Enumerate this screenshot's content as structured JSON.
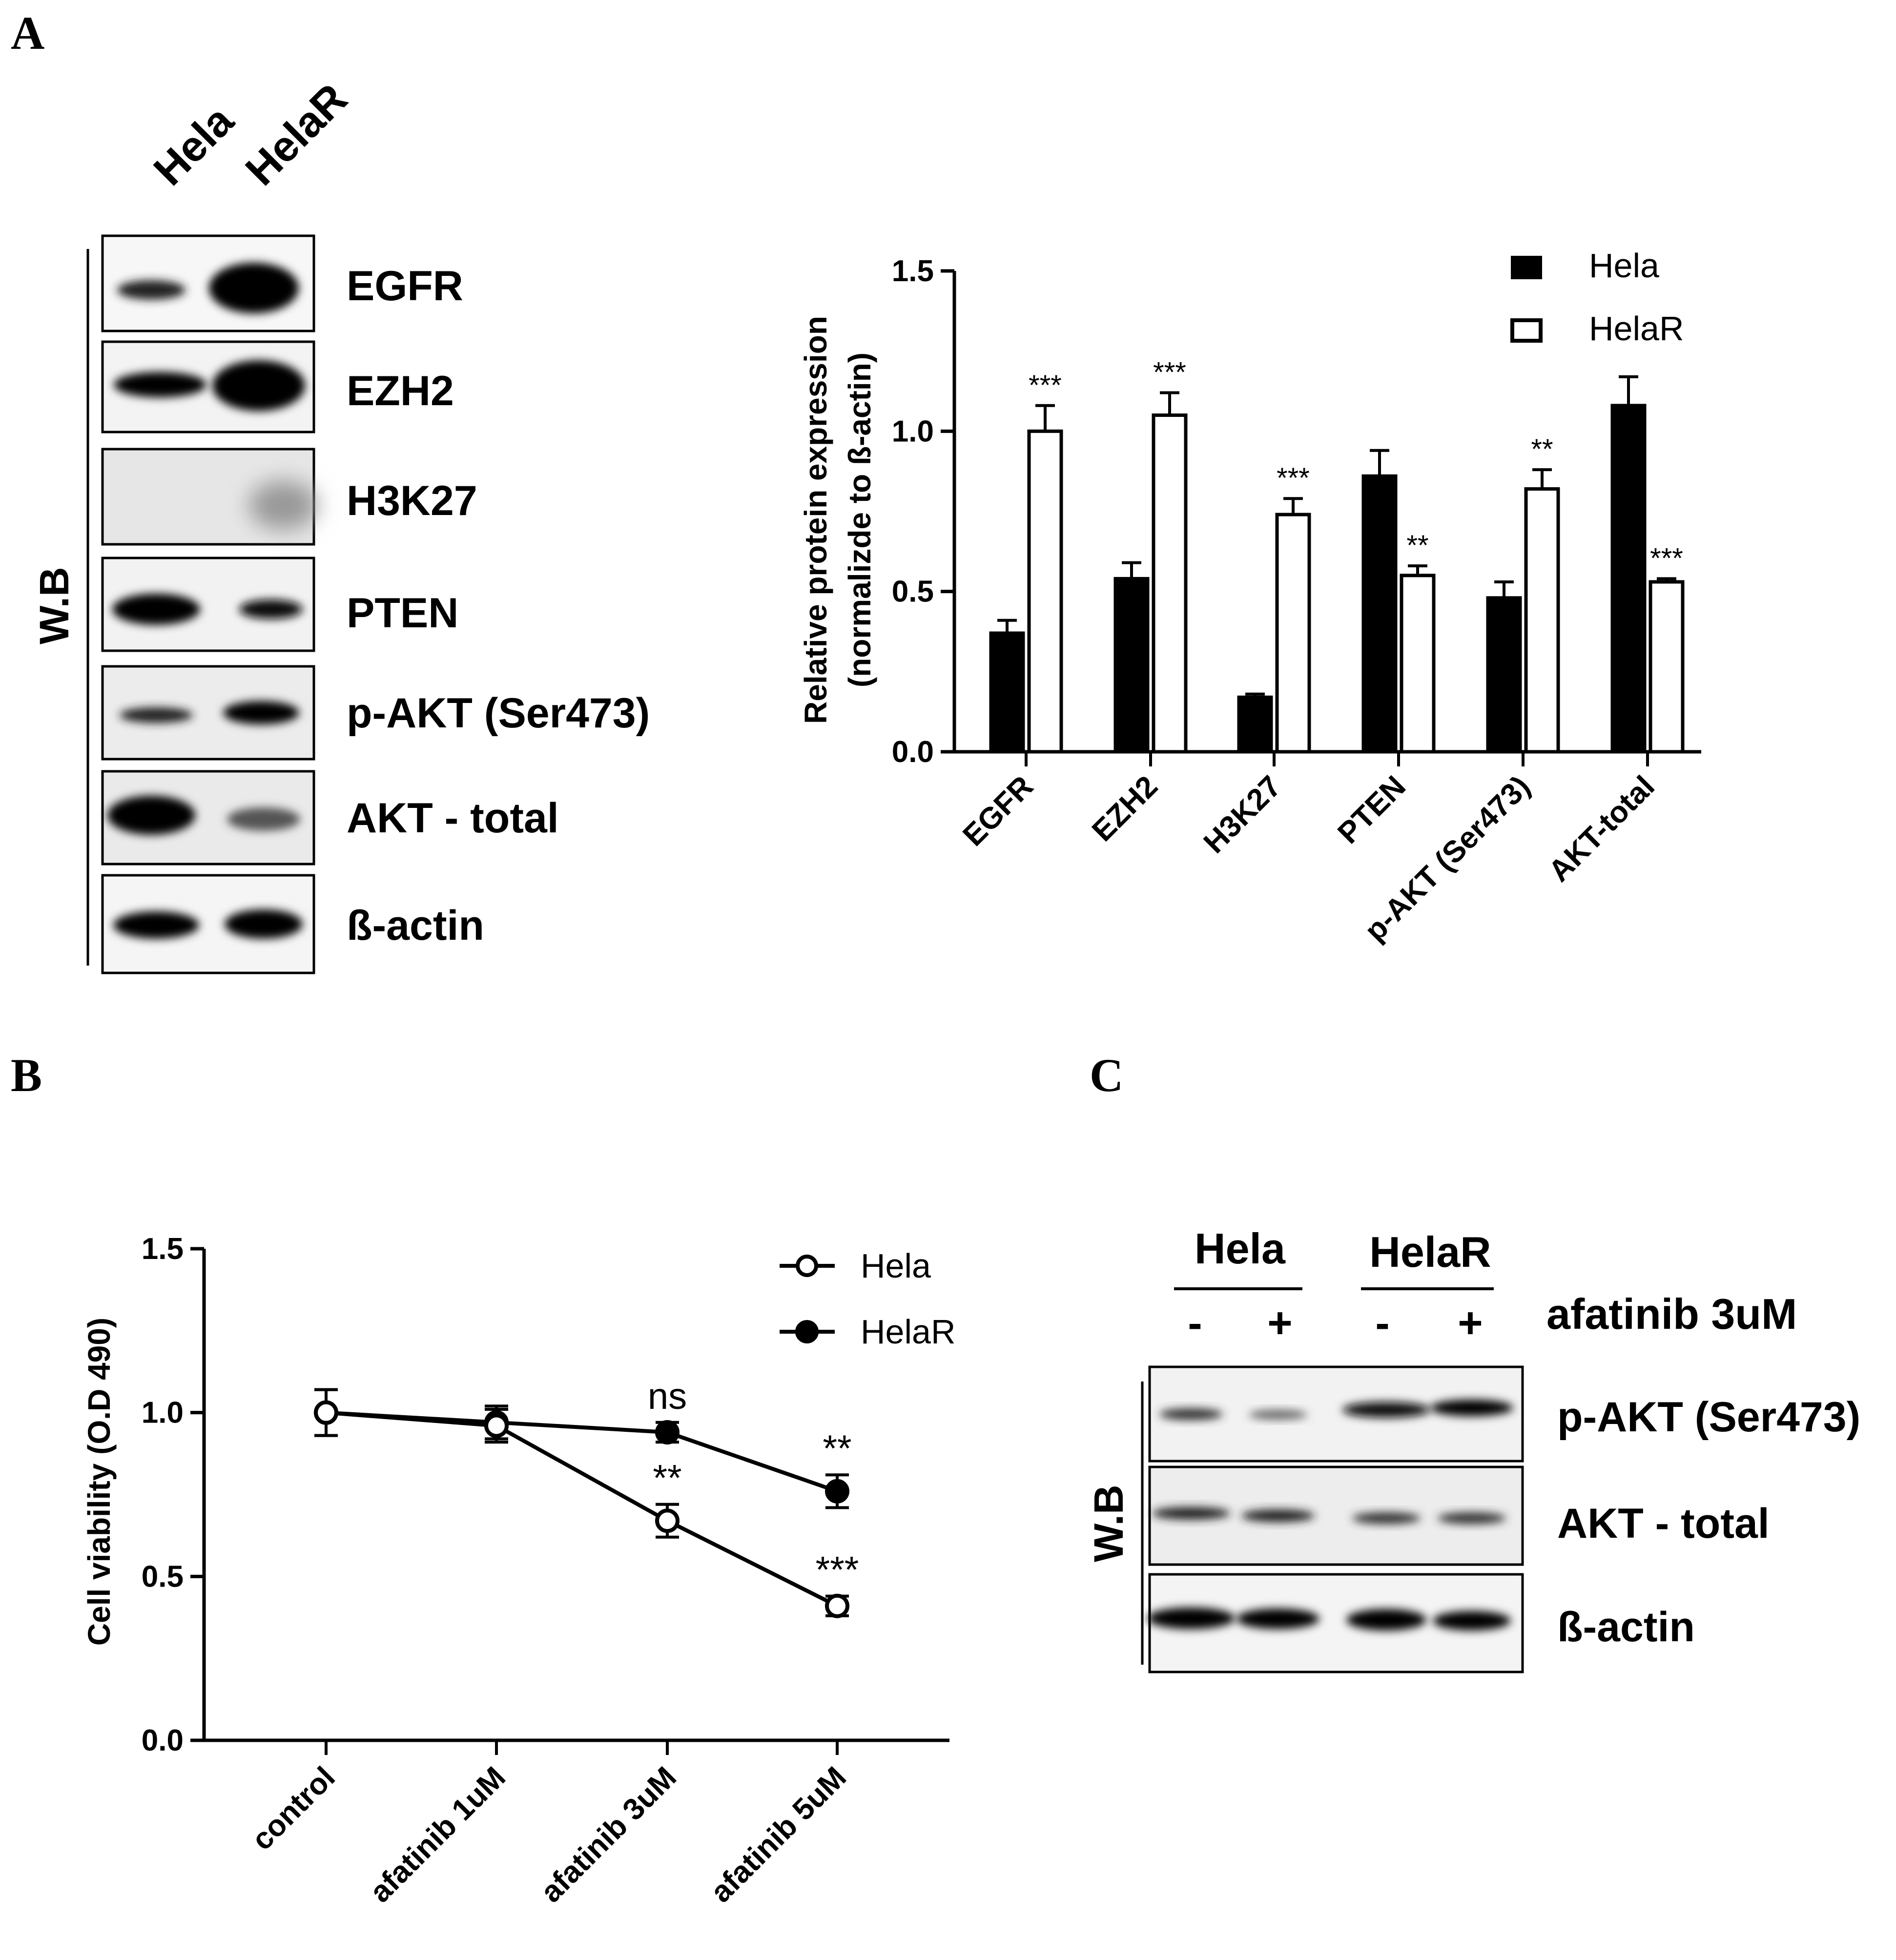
{
  "panels": {
    "A": "A",
    "B": "B",
    "C": "C"
  },
  "panel_a": {
    "lanes": [
      "Hela",
      "HelaR"
    ],
    "wb_label": "W.B",
    "blot_labels": [
      "EGFR",
      "EZH2",
      "H3K27",
      "PTEN",
      "p-AKT (Ser473)",
      "AKT - total",
      "ß-actin"
    ]
  },
  "panel_c": {
    "groups": [
      "Hela",
      "HelaR"
    ],
    "signs": [
      "-",
      "+",
      "-",
      "+"
    ],
    "treatment": "afatinib 3uM",
    "wb_label": "W.B",
    "blot_labels": [
      "p-AKT (Ser473)",
      "AKT - total",
      "ß-actin"
    ]
  },
  "chart_data": [
    {
      "type": "bar",
      "categories": [
        "EGFR",
        "EZH2",
        "H3K27",
        "PTEN",
        "p-AKT (Ser473)",
        "AKT-total"
      ],
      "series": [
        {
          "name": "Hela",
          "values": [
            0.37,
            0.54,
            0.17,
            0.86,
            0.48,
            1.08
          ],
          "errors": [
            0.04,
            0.05,
            0.01,
            0.08,
            0.05,
            0.09
          ],
          "color": "#000000"
        },
        {
          "name": "HelaR",
          "values": [
            1.0,
            1.05,
            0.74,
            0.55,
            0.82,
            0.53
          ],
          "errors": [
            0.08,
            0.07,
            0.05,
            0.03,
            0.06,
            0.01
          ],
          "color": "#ffffff"
        }
      ],
      "significance": [
        "***",
        "***",
        "***",
        "**",
        "**",
        "***"
      ],
      "ylabel_line1": "Relative protein expression",
      "ylabel_line2": "(normalizde to ß-actin)",
      "ylim": [
        0,
        1.5
      ],
      "yticks": [
        "0.0",
        "0.5",
        "1.0",
        "1.5"
      ],
      "legend_position": "top-right"
    },
    {
      "type": "line",
      "categories": [
        "control",
        "afatinib 1uM",
        "afatinib 3uM",
        "afatinib 5uM"
      ],
      "series": [
        {
          "name": "Hela",
          "values": [
            1.0,
            0.96,
            0.67,
            0.41
          ],
          "errors": [
            0.07,
            0.05,
            0.05,
            0.03
          ],
          "marker": "open-circle"
        },
        {
          "name": "HelaR",
          "values": [
            1.0,
            0.97,
            0.94,
            0.76
          ],
          "errors": [
            0.07,
            0.05,
            0.03,
            0.05
          ],
          "marker": "filled-circle"
        }
      ],
      "hela_significance": [
        "",
        "",
        "**",
        "***"
      ],
      "helar_significance": [
        "",
        "",
        "ns",
        "**"
      ],
      "ylabel": "Cell viability (O.D 490)",
      "ylim": [
        0,
        1.5
      ],
      "yticks": [
        "0.0",
        "0.5",
        "1.0",
        "1.5"
      ],
      "legend_position": "top-right"
    }
  ]
}
